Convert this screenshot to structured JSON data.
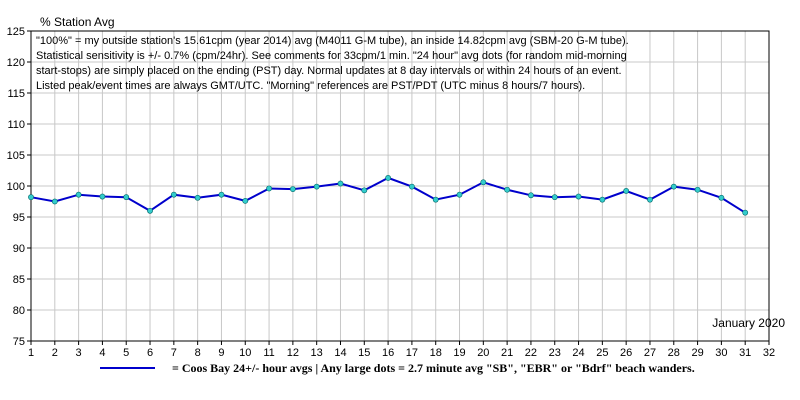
{
  "chart_data": {
    "type": "line",
    "ylabel": "% Station Avg",
    "period_label": "January 2020",
    "notes": [
      "\"100%\" = my outside station's 15.61cpm (year 2014) avg (M4011 G-M tube), an inside 14.82cpm avg (SBM-20 G-M tube).",
      "Statistical sensitivity is +/- 0.7% (cpm/24hr). See comments for 33cpm/1 min. \"24 hour\" avg dots (for random mid-morning",
      "start-stops) are simply placed on the ending (PST) day. Normal updates at 8 day intervals or within 24 hours of an event.",
      "Listed peak/event times are always GMT/UTC.  \"Morning\" references are PST/PDT (UTC minus 8 hours/7 hours)."
    ],
    "xlim": [
      1,
      32
    ],
    "ylim": [
      75,
      125
    ],
    "x_ticks": [
      1,
      2,
      3,
      4,
      5,
      6,
      7,
      8,
      9,
      10,
      11,
      12,
      13,
      14,
      15,
      16,
      17,
      18,
      19,
      20,
      21,
      22,
      23,
      24,
      25,
      26,
      27,
      28,
      29,
      30,
      31,
      32
    ],
    "y_ticks": [
      75,
      80,
      85,
      90,
      95,
      100,
      105,
      110,
      115,
      120,
      125
    ],
    "grid": true,
    "series": [
      {
        "name": "= Coos Bay 24+/- hour avgs | Any large dots = 2.7 minute avg \"SB\", \"EBR\" or \"Bdrf\" beach wanders.",
        "color": "#0000cc",
        "marker_color": "#33cccc",
        "x": [
          1,
          2,
          3,
          4,
          5,
          6,
          7,
          8,
          9,
          10,
          11,
          12,
          13,
          14,
          15,
          16,
          17,
          18,
          19,
          20,
          21,
          22,
          23,
          24,
          25,
          26,
          27,
          28,
          29,
          30,
          31
        ],
        "y": [
          98.2,
          97.5,
          98.6,
          98.3,
          98.2,
          96.0,
          98.6,
          98.1,
          98.6,
          97.6,
          99.6,
          99.5,
          99.9,
          100.4,
          99.3,
          101.3,
          99.9,
          97.8,
          98.6,
          100.6,
          99.4,
          98.5,
          98.2,
          98.3,
          97.8,
          99.2,
          97.8,
          99.9,
          99.4,
          98.1,
          95.7
        ]
      }
    ]
  }
}
